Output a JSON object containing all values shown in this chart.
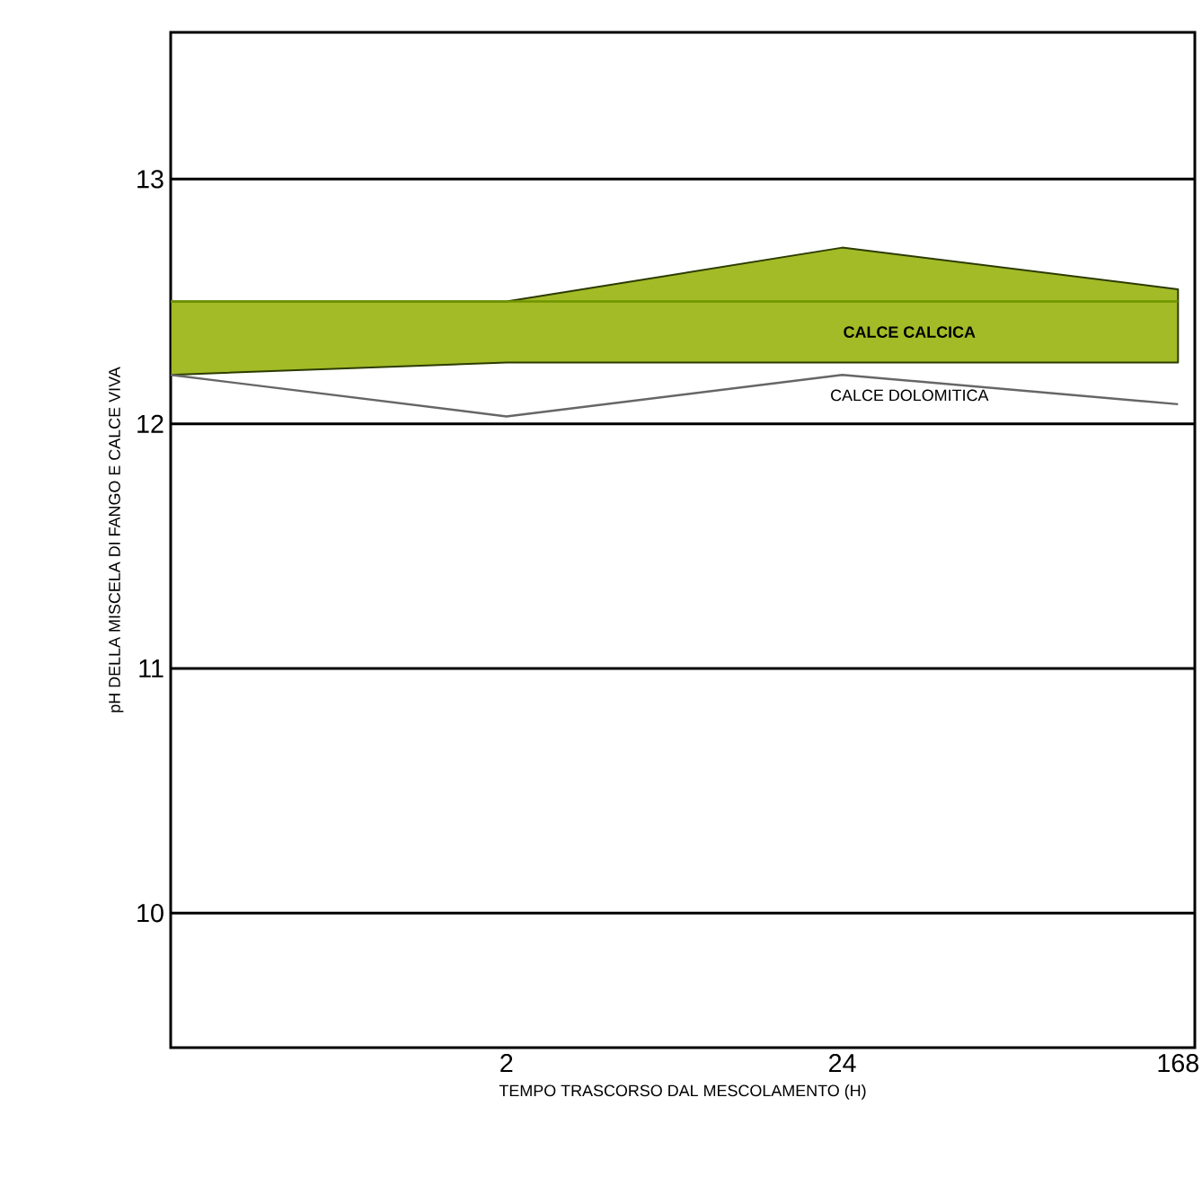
{
  "chart_data": {
    "type": "line",
    "xlabel": "TEMPO TRASCORSO DAL MESCOLAMENTO (H)",
    "ylabel": "pH DELLA MISCELA DI FANGO E CALCE VIVA",
    "categories": [
      null,
      "2",
      "24",
      "168"
    ],
    "series": [
      {
        "name": "CALCE CALCICA",
        "color": "#6e9400",
        "values": [
          12.5,
          12.5,
          12.5,
          12.5
        ],
        "lower": [
          12.2,
          12.25,
          12.25,
          12.25
        ],
        "upper": [
          12.5,
          12.5,
          12.72,
          12.55
        ]
      },
      {
        "name": "CALCE DOLOMITICA",
        "color": "#666666",
        "values": [
          12.2,
          12.03,
          12.2,
          12.08
        ]
      }
    ],
    "ylim": [
      9.45,
      13.6
    ],
    "yticks": [
      10,
      11,
      12,
      13
    ],
    "grid": "y",
    "legend": false
  }
}
